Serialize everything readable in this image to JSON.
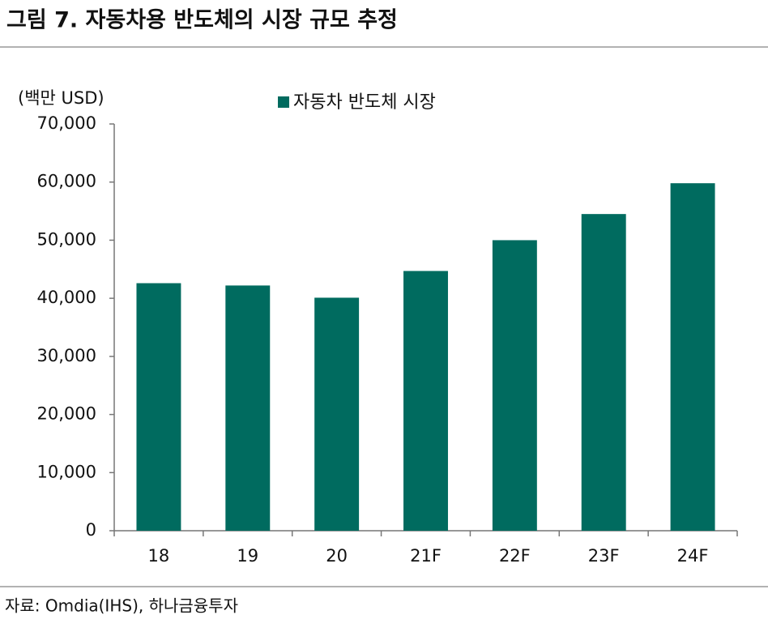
{
  "chart_data": {
    "type": "bar",
    "title": "그림 7. 자동차용 반도체의 시장 규모 추정",
    "y_label": "(백만 USD)",
    "source": "자료: Omdia(IHS), 하나금융투자",
    "categories": [
      "18",
      "19",
      "20",
      "21F",
      "22F",
      "23F",
      "24F"
    ],
    "series": [
      {
        "name": "자동차 반도체 시장",
        "color": "#006b5f",
        "values": [
          42600,
          42200,
          40100,
          44700,
          50000,
          54500,
          59800
        ]
      }
    ],
    "ylim": [
      0,
      70000
    ],
    "yticks": [
      0,
      {
        "value": 10000,
        "label": "10,000"
      },
      {
        "value": 20000,
        "label": "20,000"
      },
      {
        "value": 30000,
        "label": "30,000"
      },
      {
        "value": 40000,
        "label": "40,000"
      },
      {
        "value": 50000,
        "label": "50,000"
      },
      {
        "value": 60000,
        "label": "60,000"
      },
      {
        "value": 70000,
        "label": "70,000"
      }
    ],
    "grid": false,
    "legend": "top"
  }
}
